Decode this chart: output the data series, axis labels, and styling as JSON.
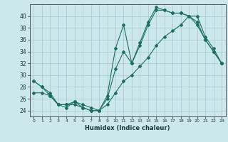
{
  "xlabel": "Humidex (Indice chaleur)",
  "background_color": "#cce8ec",
  "grid_color": "#aacdd4",
  "line_color": "#1a7060",
  "xlim": [
    -0.5,
    23.5
  ],
  "ylim": [
    23,
    42
  ],
  "yticks": [
    24,
    26,
    28,
    30,
    32,
    34,
    36,
    38,
    40
  ],
  "xticks": [
    0,
    1,
    2,
    3,
    4,
    5,
    6,
    7,
    8,
    9,
    10,
    11,
    12,
    13,
    14,
    15,
    16,
    17,
    18,
    19,
    20,
    21,
    22,
    23
  ],
  "line1_x": [
    0,
    1,
    2,
    3,
    4,
    5,
    6,
    7,
    8,
    9,
    10,
    11,
    12,
    13,
    14,
    15,
    16,
    17,
    18,
    19,
    20,
    21,
    22,
    23
  ],
  "line1_y": [
    29,
    28,
    27,
    25,
    24.5,
    25.5,
    24.5,
    24,
    24,
    26.5,
    34.5,
    38.5,
    32,
    35.5,
    39,
    41.5,
    41,
    40.5,
    40.5,
    40,
    39,
    36,
    34,
    32
  ],
  "line2_x": [
    0,
    1,
    2,
    3,
    4,
    5,
    6,
    7,
    8,
    9,
    10,
    11,
    12,
    13,
    14,
    15,
    16,
    17,
    18,
    19,
    20,
    21,
    22,
    23
  ],
  "line2_y": [
    29,
    28,
    26.5,
    25,
    25,
    25.5,
    25,
    24.5,
    24,
    26,
    31,
    34,
    32,
    35,
    38.5,
    41,
    41,
    40.5,
    40.5,
    40,
    38.5,
    36,
    34,
    32
  ],
  "line3_x": [
    0,
    1,
    2,
    3,
    4,
    5,
    6,
    7,
    8,
    9,
    10,
    11,
    12,
    13,
    14,
    15,
    16,
    17,
    18,
    19,
    20,
    21,
    22,
    23
  ],
  "line3_y": [
    27,
    27,
    26.5,
    25,
    25,
    25,
    24.5,
    24,
    24,
    25,
    27,
    29,
    30,
    31.5,
    33,
    35,
    36.5,
    37.5,
    38.5,
    40,
    40,
    36.5,
    34.5,
    32
  ]
}
